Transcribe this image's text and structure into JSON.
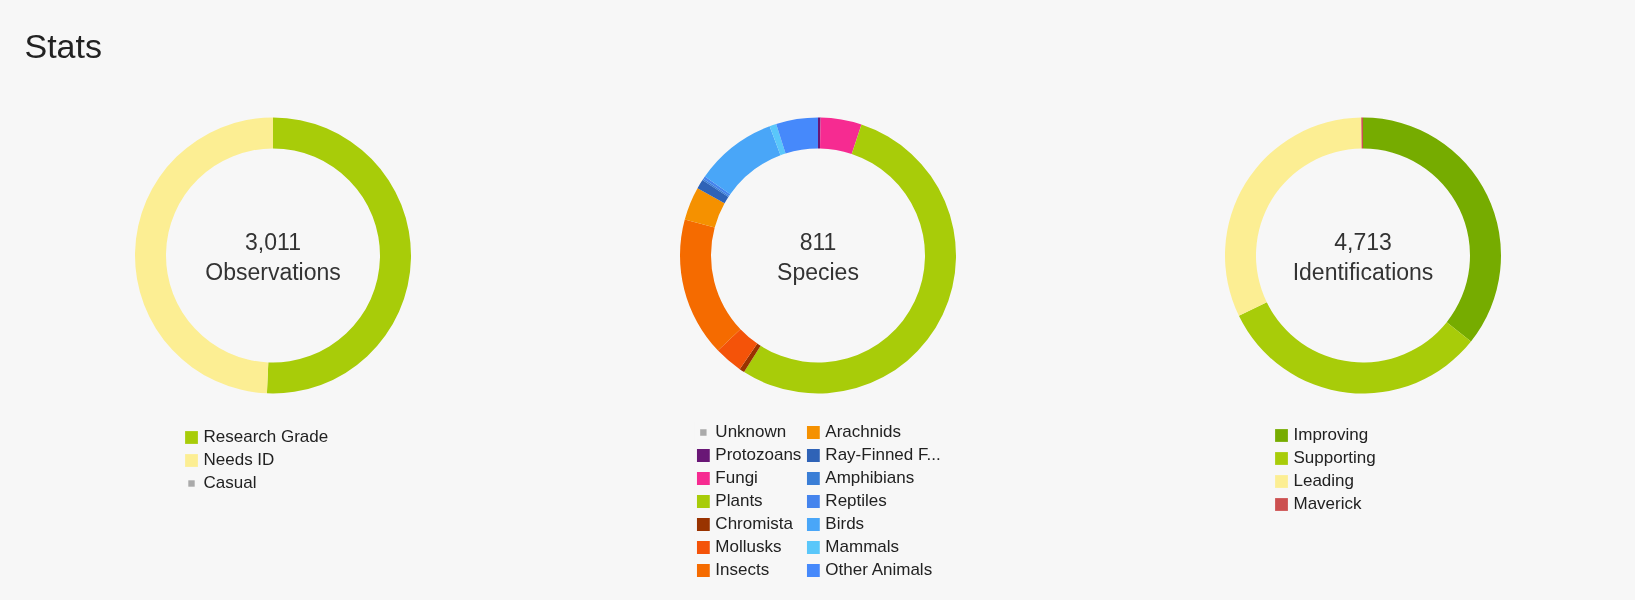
{
  "chart_data": [
    {
      "type": "donut",
      "annotations": [
        "Stats"
      ],
      "title": "3,011",
      "subtitle": "Observations",
      "legend": "bottom",
      "categories": [
        "Research Grade",
        "Needs ID",
        "Casual"
      ],
      "values": [
        50.7,
        49.3,
        0
      ],
      "colors": [
        "#a8cc09",
        "#fcee93",
        "#aaaaaa"
      ]
    },
    {
      "type": "donut",
      "title": "811",
      "subtitle": "Species",
      "legend": "bottom",
      "categories": [
        "Unknown",
        "Protozoans",
        "Fungi",
        "Plants",
        "Chromista",
        "Mollusks",
        "Insects",
        "Arachnids",
        "Ray-Finned F...",
        "Amphibians",
        "Reptiles",
        "Birds",
        "Mammals",
        "Other Animals"
      ],
      "values": [
        0,
        0.3,
        4.8,
        53.9,
        0.6,
        3.3,
        16.3,
        3.9,
        1.1,
        0.2,
        0.3,
        9.6,
        0.8,
        4.9
      ],
      "colors": [
        "#aaaaaa",
        "#691776",
        "#f62b91",
        "#a8cc09",
        "#993300",
        "#f45309",
        "#f56b00",
        "#f59100",
        "#2f63b7",
        "#3a7ed6",
        "#4584ed",
        "#49a6f8",
        "#5ac7fa",
        "#4689fb"
      ]
    },
    {
      "type": "donut",
      "title": "4,713",
      "subtitle": "Identifications",
      "legend": "bottom",
      "categories": [
        "Improving",
        "Supporting",
        "Leading",
        "Maverick"
      ],
      "values": [
        35.7,
        32.1,
        32.0,
        0.2
      ],
      "colors": [
        "#76ac00",
        "#a8cc09",
        "#fcee93",
        "#cc5050"
      ]
    }
  ]
}
